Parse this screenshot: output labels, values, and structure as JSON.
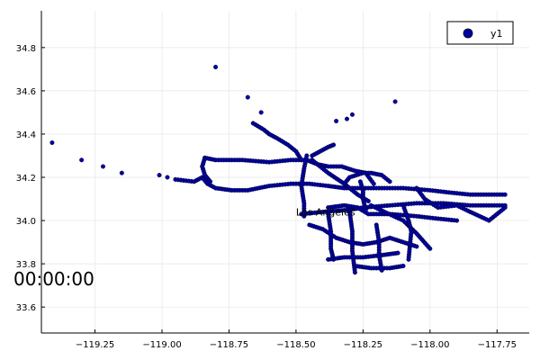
{
  "chart_data": {
    "type": "scatter",
    "xlim": [
      -119.45,
      -117.63
    ],
    "ylim": [
      33.48,
      34.97
    ],
    "x_ticks": [
      -119.25,
      -119.0,
      -118.75,
      -118.5,
      -118.25,
      -118.0,
      -117.75
    ],
    "x_tick_labels": [
      "−119.25",
      "−119.00",
      "−118.75",
      "−118.50",
      "−118.25",
      "−118.00",
      "−117.75"
    ],
    "y_ticks": [
      33.6,
      33.8,
      34.0,
      34.2,
      34.4,
      34.6,
      34.8
    ],
    "y_tick_labels": [
      "33.6",
      "33.8",
      "34.0",
      "34.2",
      "34.4",
      "34.6",
      "34.8"
    ],
    "grid": true,
    "legend_position": "top-right",
    "series": [
      {
        "name": "y1",
        "color": "#0000aa",
        "points": [
          [
            -119.41,
            34.36
          ],
          [
            -119.3,
            34.28
          ],
          [
            -119.22,
            34.25
          ],
          [
            -119.15,
            34.22
          ],
          [
            -119.01,
            34.21
          ],
          [
            -118.98,
            34.2
          ],
          [
            -118.8,
            34.71
          ],
          [
            -118.68,
            34.57
          ],
          [
            -118.63,
            34.5
          ],
          [
            -118.13,
            34.55
          ],
          [
            -118.29,
            34.49
          ],
          [
            -118.31,
            34.47
          ],
          [
            -118.35,
            34.46
          ]
        ],
        "segments": [
          {
            "x": [
              -118.95,
              -118.88,
              -118.85,
              -118.83,
              -118.8,
              -118.74,
              -118.68,
              -118.6,
              -118.52,
              -118.45,
              -118.38,
              -118.32,
              -118.25,
              -118.2,
              -118.1,
              -118.0,
              -117.93,
              -117.85,
              -117.8,
              -117.72
            ],
            "y": [
              34.19,
              34.18,
              34.2,
              34.17,
              34.15,
              34.14,
              34.14,
              34.16,
              34.17,
              34.17,
              34.16,
              34.15,
              34.15,
              34.15,
              34.15,
              34.14,
              34.13,
              34.12,
              34.12,
              34.12
            ]
          },
          {
            "x": [
              -118.84,
              -118.8,
              -118.7,
              -118.6,
              -118.52,
              -118.46,
              -118.42,
              -118.38,
              -118.33,
              -118.28,
              -118.24,
              -118.21
            ],
            "y": [
              34.29,
              34.28,
              34.28,
              34.27,
              34.28,
              34.28,
              34.26,
              34.25,
              34.25,
              34.23,
              34.22,
              34.17
            ]
          },
          {
            "x": [
              -118.84,
              -118.85,
              -118.84,
              -118.82
            ],
            "y": [
              34.29,
              34.25,
              34.21,
              34.18
            ]
          },
          {
            "x": [
              -118.66,
              -118.62,
              -118.6,
              -118.57,
              -118.53,
              -118.5,
              -118.48
            ],
            "y": [
              34.45,
              34.42,
              34.4,
              34.38,
              34.35,
              34.32,
              34.28
            ]
          },
          {
            "x": [
              -118.44,
              -118.41,
              -118.38,
              -118.36
            ],
            "y": [
              34.3,
              34.32,
              34.34,
              34.35
            ]
          },
          {
            "x": [
              -118.46,
              -118.47,
              -118.48,
              -118.47,
              -118.47
            ],
            "y": [
              34.3,
              34.24,
              34.16,
              34.08,
              34.02
            ]
          },
          {
            "x": [
              -118.44,
              -118.38,
              -118.32,
              -118.27,
              -118.23
            ],
            "y": [
              34.28,
              34.22,
              34.17,
              34.12,
              34.09
            ]
          },
          {
            "x": [
              -118.32,
              -118.3,
              -118.25,
              -118.22,
              -118.18,
              -118.15
            ],
            "y": [
              34.17,
              34.2,
              34.22,
              34.22,
              34.21,
              34.18
            ]
          },
          {
            "x": [
              -118.48,
              -118.4,
              -118.3,
              -118.25,
              -118.15,
              -118.05,
              -117.95,
              -117.85,
              -117.78,
              -117.72
            ],
            "y": [
              34.03,
              34.04,
              34.05,
              34.06,
              34.07,
              34.08,
              34.08,
              34.07,
              34.07,
              34.07
            ]
          },
          {
            "x": [
              -118.38,
              -118.32,
              -118.27,
              -118.23,
              -118.15,
              -118.05,
              -117.98,
              -117.9
            ],
            "y": [
              34.06,
              34.07,
              34.06,
              34.03,
              34.03,
              34.02,
              34.01,
              34.0
            ]
          },
          {
            "x": [
              -118.22,
              -118.17,
              -118.1,
              -118.05,
              -118.0
            ],
            "y": [
              34.07,
              34.04,
              34.0,
              33.94,
              33.87
            ]
          },
          {
            "x": [
              -118.05,
              -118.02,
              -117.97,
              -117.9,
              -117.85,
              -117.78,
              -117.72
            ],
            "y": [
              34.15,
              34.1,
              34.06,
              34.07,
              34.04,
              34.0,
              34.06
            ]
          },
          {
            "x": [
              -118.1,
              -118.08,
              -118.07,
              -118.08
            ],
            "y": [
              34.07,
              34.0,
              33.95,
              33.82
            ]
          },
          {
            "x": [
              -118.3,
              -118.29,
              -118.29,
              -118.28
            ],
            "y": [
              34.04,
              33.95,
              33.86,
              33.76
            ]
          },
          {
            "x": [
              -118.38,
              -118.37,
              -118.37,
              -118.36
            ],
            "y": [
              34.03,
              33.95,
              33.87,
              33.82
            ]
          },
          {
            "x": [
              -118.45,
              -118.4,
              -118.35,
              -118.3,
              -118.25,
              -118.2,
              -118.15,
              -118.1,
              -118.05
            ],
            "y": [
              33.98,
              33.96,
              33.92,
              33.9,
              33.89,
              33.9,
              33.92,
              33.9,
              33.88
            ]
          },
          {
            "x": [
              -118.38,
              -118.32,
              -118.25,
              -118.18,
              -118.12
            ],
            "y": [
              33.82,
              33.83,
              33.83,
              33.84,
              33.85
            ]
          },
          {
            "x": [
              -118.28,
              -118.22,
              -118.15,
              -118.1
            ],
            "y": [
              33.79,
              33.78,
              33.78,
              33.79
            ]
          },
          {
            "x": [
              -118.2,
              -118.19,
              -118.19,
              -118.18
            ],
            "y": [
              33.98,
              33.9,
              33.84,
              33.77
            ]
          },
          {
            "x": [
              -118.26,
              -118.25,
              -118.25,
              -118.24
            ],
            "y": [
              34.18,
              34.14,
              34.1,
              34.05
            ]
          }
        ]
      }
    ],
    "annotations": [
      {
        "text": "Los Angeles",
        "x": -118.5,
        "y": 34.04
      },
      {
        "text": "00:00:00",
        "x": -119.45,
        "y": 33.73
      }
    ]
  }
}
